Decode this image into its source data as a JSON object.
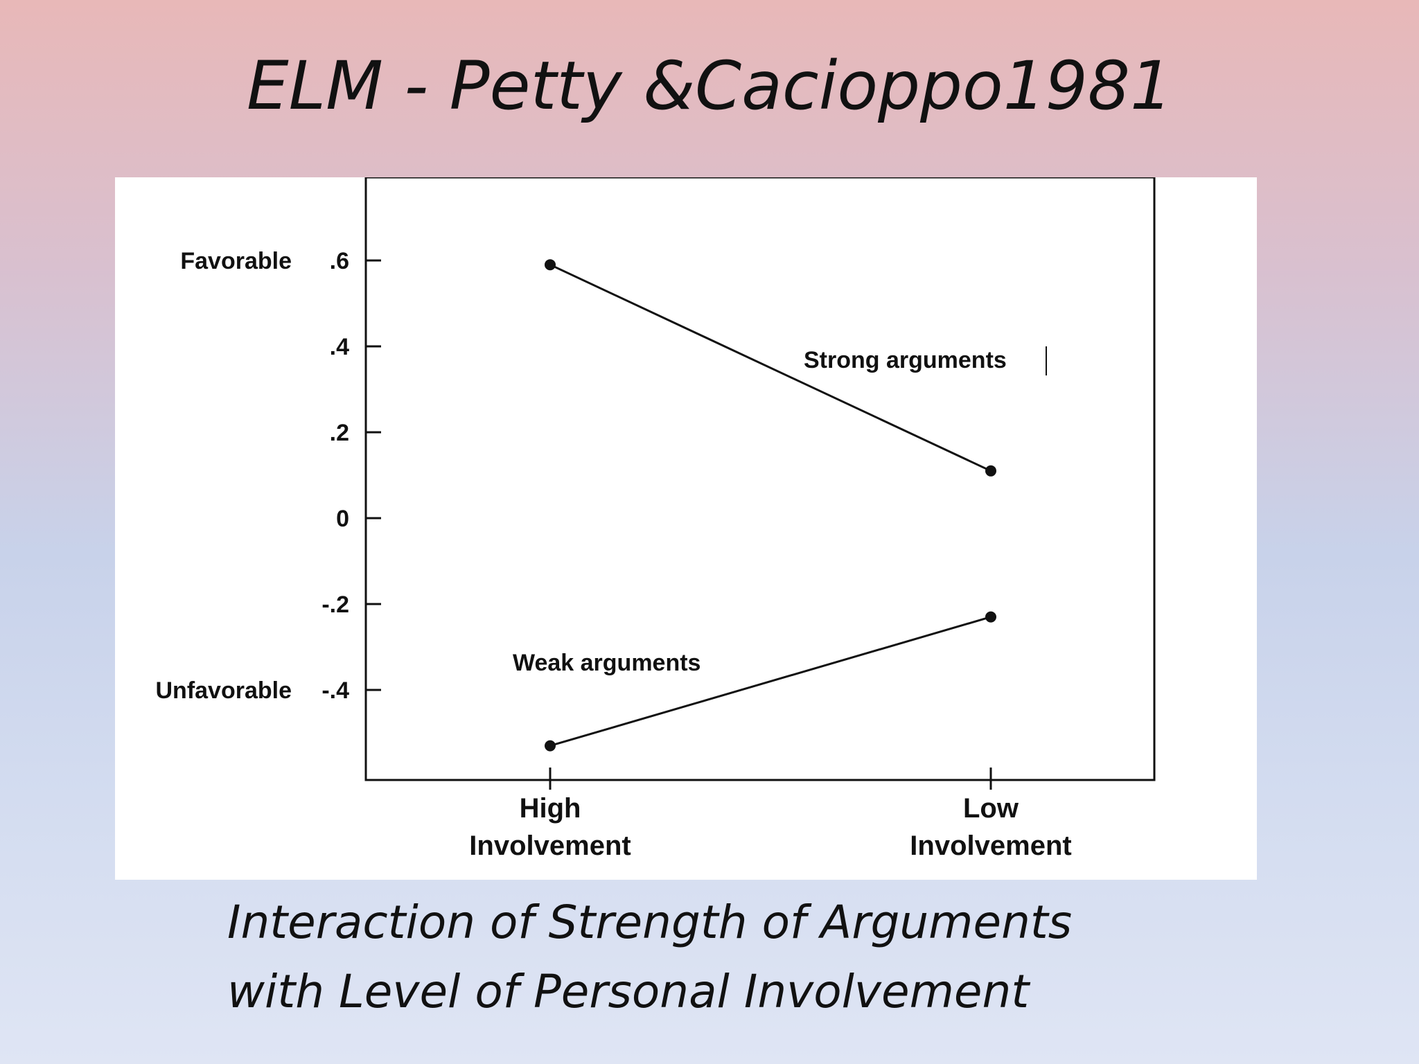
{
  "slide": {
    "title": "ELM - Petty &Cacioppo1981",
    "caption_lines": [
      "Interaction of Strength of Arguments",
      "with Level of Personal Involvement"
    ]
  },
  "chart_data": {
    "type": "line",
    "categories": [
      "High\nInvolvement",
      "Low\nInvolvement"
    ],
    "category_lines": [
      [
        "High",
        "Involvement"
      ],
      [
        "Low",
        "Involvement"
      ]
    ],
    "series": [
      {
        "name": "Strong arguments",
        "values": [
          0.59,
          0.11
        ]
      },
      {
        "name": "Weak arguments",
        "values": [
          -0.53,
          -0.23
        ]
      }
    ],
    "y_ticks": [
      {
        "value": 0.6,
        "label": ".6"
      },
      {
        "value": 0.4,
        "label": ".4"
      },
      {
        "value": 0.2,
        "label": ".2"
      },
      {
        "value": 0,
        "label": "0"
      },
      {
        "value": -0.2,
        "label": "-.2"
      },
      {
        "value": -0.4,
        "label": "-.4"
      }
    ],
    "y_side_labels": [
      {
        "value": 0.6,
        "label": "Favorable"
      },
      {
        "value": -0.4,
        "label": "Unfavorable"
      }
    ],
    "ylim": [
      -0.6,
      0.78
    ],
    "grid": false,
    "line_color": "#111111"
  }
}
